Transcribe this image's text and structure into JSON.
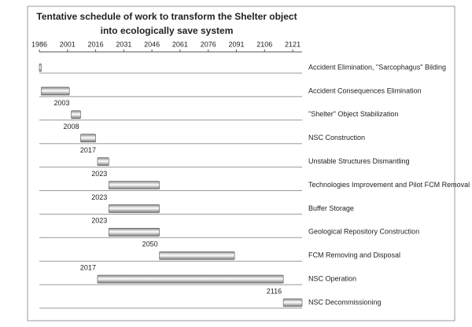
{
  "chart_data": {
    "type": "gantt",
    "title": [
      "Tentative schedule of work to transform the Shelter object",
      "into ecologically save system"
    ],
    "categories": [
      "Accident Elimination, \"Sarcophagus\" Bilding",
      "Accident Consequences Elimination",
      "\"Shelter\" Object Stabilization",
      "NSC Construction",
      "Unstable Structures Dismantling",
      "Technologies Improvement and Pilot FCM Removal",
      "Buffer Storage",
      "Geological Repository Construction",
      "FCM Removing and Disposal",
      "NSC Operation",
      "NSC Decommissioning"
    ],
    "starts": [
      1986,
      1987,
      2003,
      2008,
      2017,
      2023,
      2023,
      2023,
      2050,
      2017,
      2116
    ],
    "ends": [
      1987,
      2002,
      2008,
      2016,
      2023,
      2050,
      2050,
      2050,
      2090,
      2116,
      2126
    ],
    "start_label_shown": [
      false,
      false,
      true,
      true,
      true,
      true,
      true,
      true,
      true,
      true,
      true
    ],
    "xlim": [
      1986,
      2126
    ],
    "xticks": [
      1986,
      2001,
      2016,
      2031,
      2046,
      2061,
      2076,
      2091,
      2106,
      2121
    ],
    "color": "#c8c8c8"
  }
}
